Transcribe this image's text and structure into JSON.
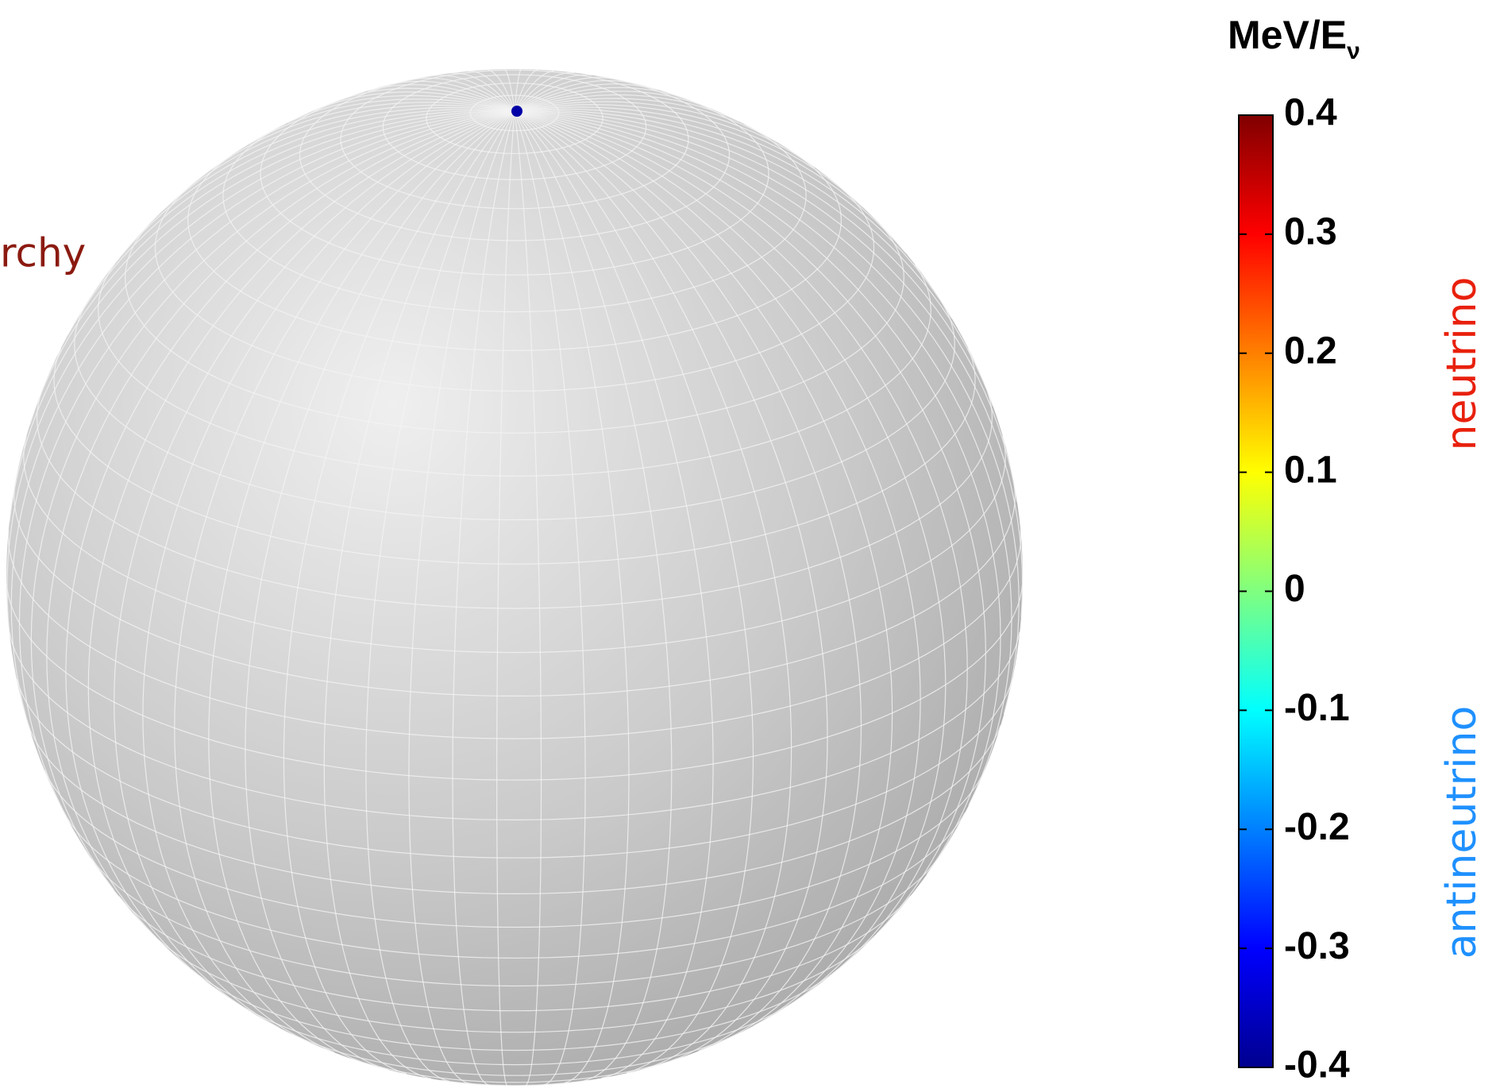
{
  "chart_data": {
    "type": "sphere",
    "side_text": "rchy",
    "colorbar": {
      "label": "MeV/E",
      "label_sub": "ν",
      "clim": [
        -0.4,
        0.4
      ],
      "ticks": [
        0.4,
        0.3,
        0.2,
        0.1,
        0,
        -0.1,
        -0.2,
        -0.3,
        -0.4
      ]
    },
    "points": [
      {
        "value": -0.37
      }
    ],
    "annotations": [
      {
        "text": "neutrino",
        "color": "#e8200c"
      },
      {
        "text": "antineutrino",
        "color": "#1e90ff"
      }
    ]
  }
}
